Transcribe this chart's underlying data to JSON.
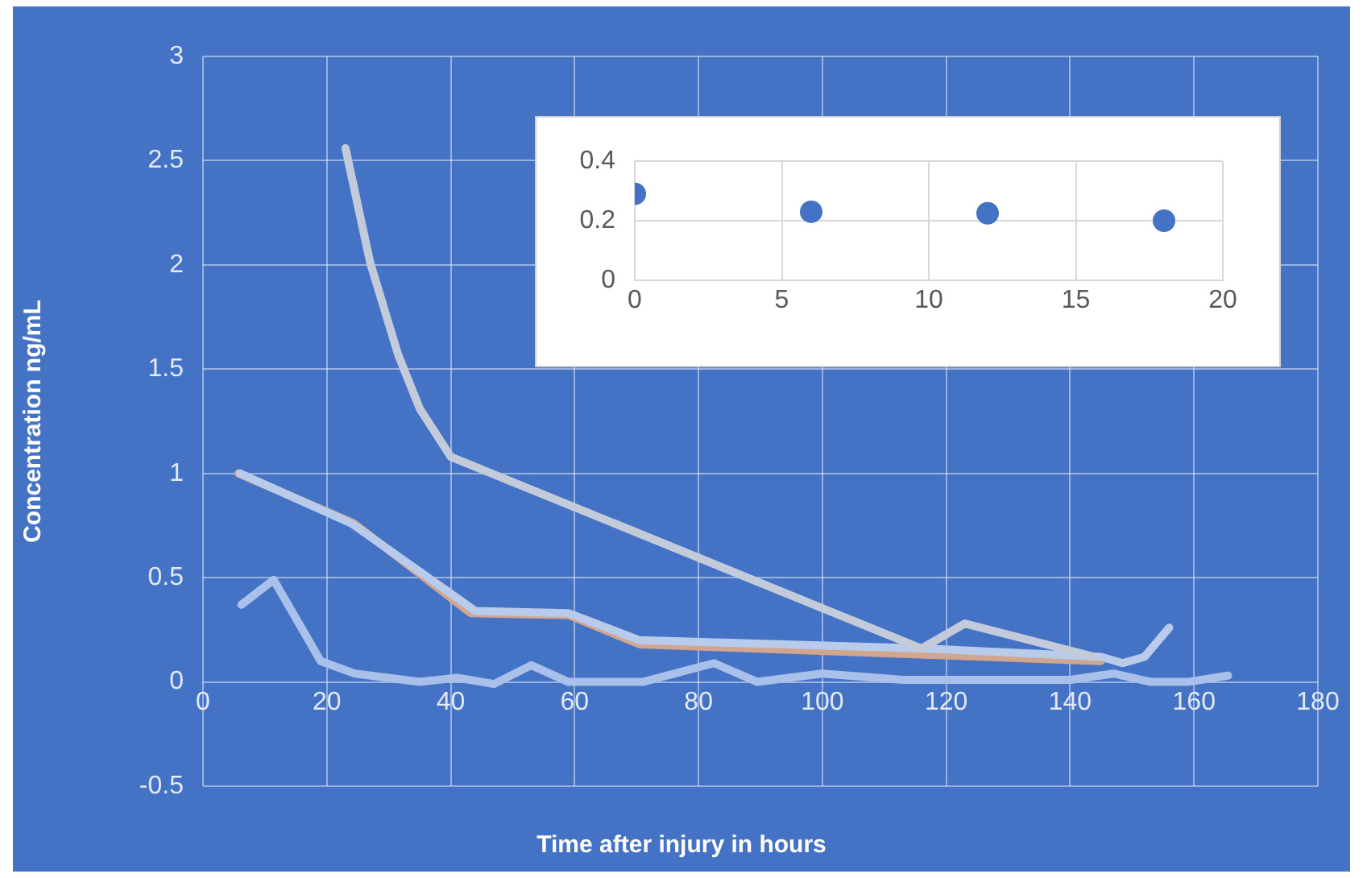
{
  "chart_data": [
    {
      "type": "line",
      "xlabel": "Time after injury in hours",
      "ylabel": "Concentration ng/mL",
      "xlim": [
        0,
        180
      ],
      "xticks": [
        0,
        20,
        40,
        60,
        80,
        100,
        120,
        140,
        160,
        180
      ],
      "ylim": [
        -0.5,
        3
      ],
      "yticks": [
        -0.5,
        0,
        0.5,
        1,
        1.5,
        2,
        2.5,
        3
      ],
      "grid": true,
      "marker": "none",
      "series": [
        {
          "color": "#c3cbdb",
          "x": [
            23,
            27,
            31.5,
            35,
            40,
            116,
            123,
            144
          ],
          "values": [
            2.56,
            2.01,
            1.57,
            1.31,
            1.08,
            0.16,
            0.28,
            0.12
          ]
        },
        {
          "color": "#b9cbea",
          "x": [
            6,
            24,
            44,
            59,
            70.5,
            117,
            145,
            148.5,
            152,
            156
          ],
          "values": [
            1.0,
            0.76,
            0.34,
            0.33,
            0.2,
            0.16,
            0.12,
            0.09,
            0.12,
            0.26
          ]
        },
        {
          "color": "#d2a58f",
          "x": [
            5.7,
            24.4,
            43.2,
            59,
            70.5,
            145
          ],
          "values": [
            1.0,
            0.76,
            0.33,
            0.32,
            0.18,
            0.1
          ]
        },
        {
          "color": "#a9c1ea",
          "x": [
            6.2,
            11.4,
            19,
            24.5,
            35,
            41,
            47,
            53,
            59,
            71,
            82.5,
            89.5,
            100,
            113,
            127,
            140,
            147,
            153,
            159,
            165.5
          ],
          "values": [
            0.37,
            0.49,
            0.1,
            0.04,
            0,
            0.02,
            -0.01,
            0.08,
            0,
            0,
            0.09,
            0,
            0.04,
            0.01,
            0.01,
            0.01,
            0.04,
            0,
            0,
            0.03
          ]
        }
      ]
    },
    {
      "type": "scatter",
      "xlim": [
        0,
        20
      ],
      "xticks": [
        0,
        5,
        10,
        15,
        20
      ],
      "ylim": [
        0,
        0.4
      ],
      "yticks": [
        0,
        0.2,
        0.4
      ],
      "grid": true,
      "marker": "circle",
      "series": [
        {
          "color": "#4472c4",
          "x": [
            0,
            6,
            12,
            18
          ],
          "values": [
            0.29,
            0.23,
            0.225,
            0.2
          ]
        }
      ]
    }
  ]
}
